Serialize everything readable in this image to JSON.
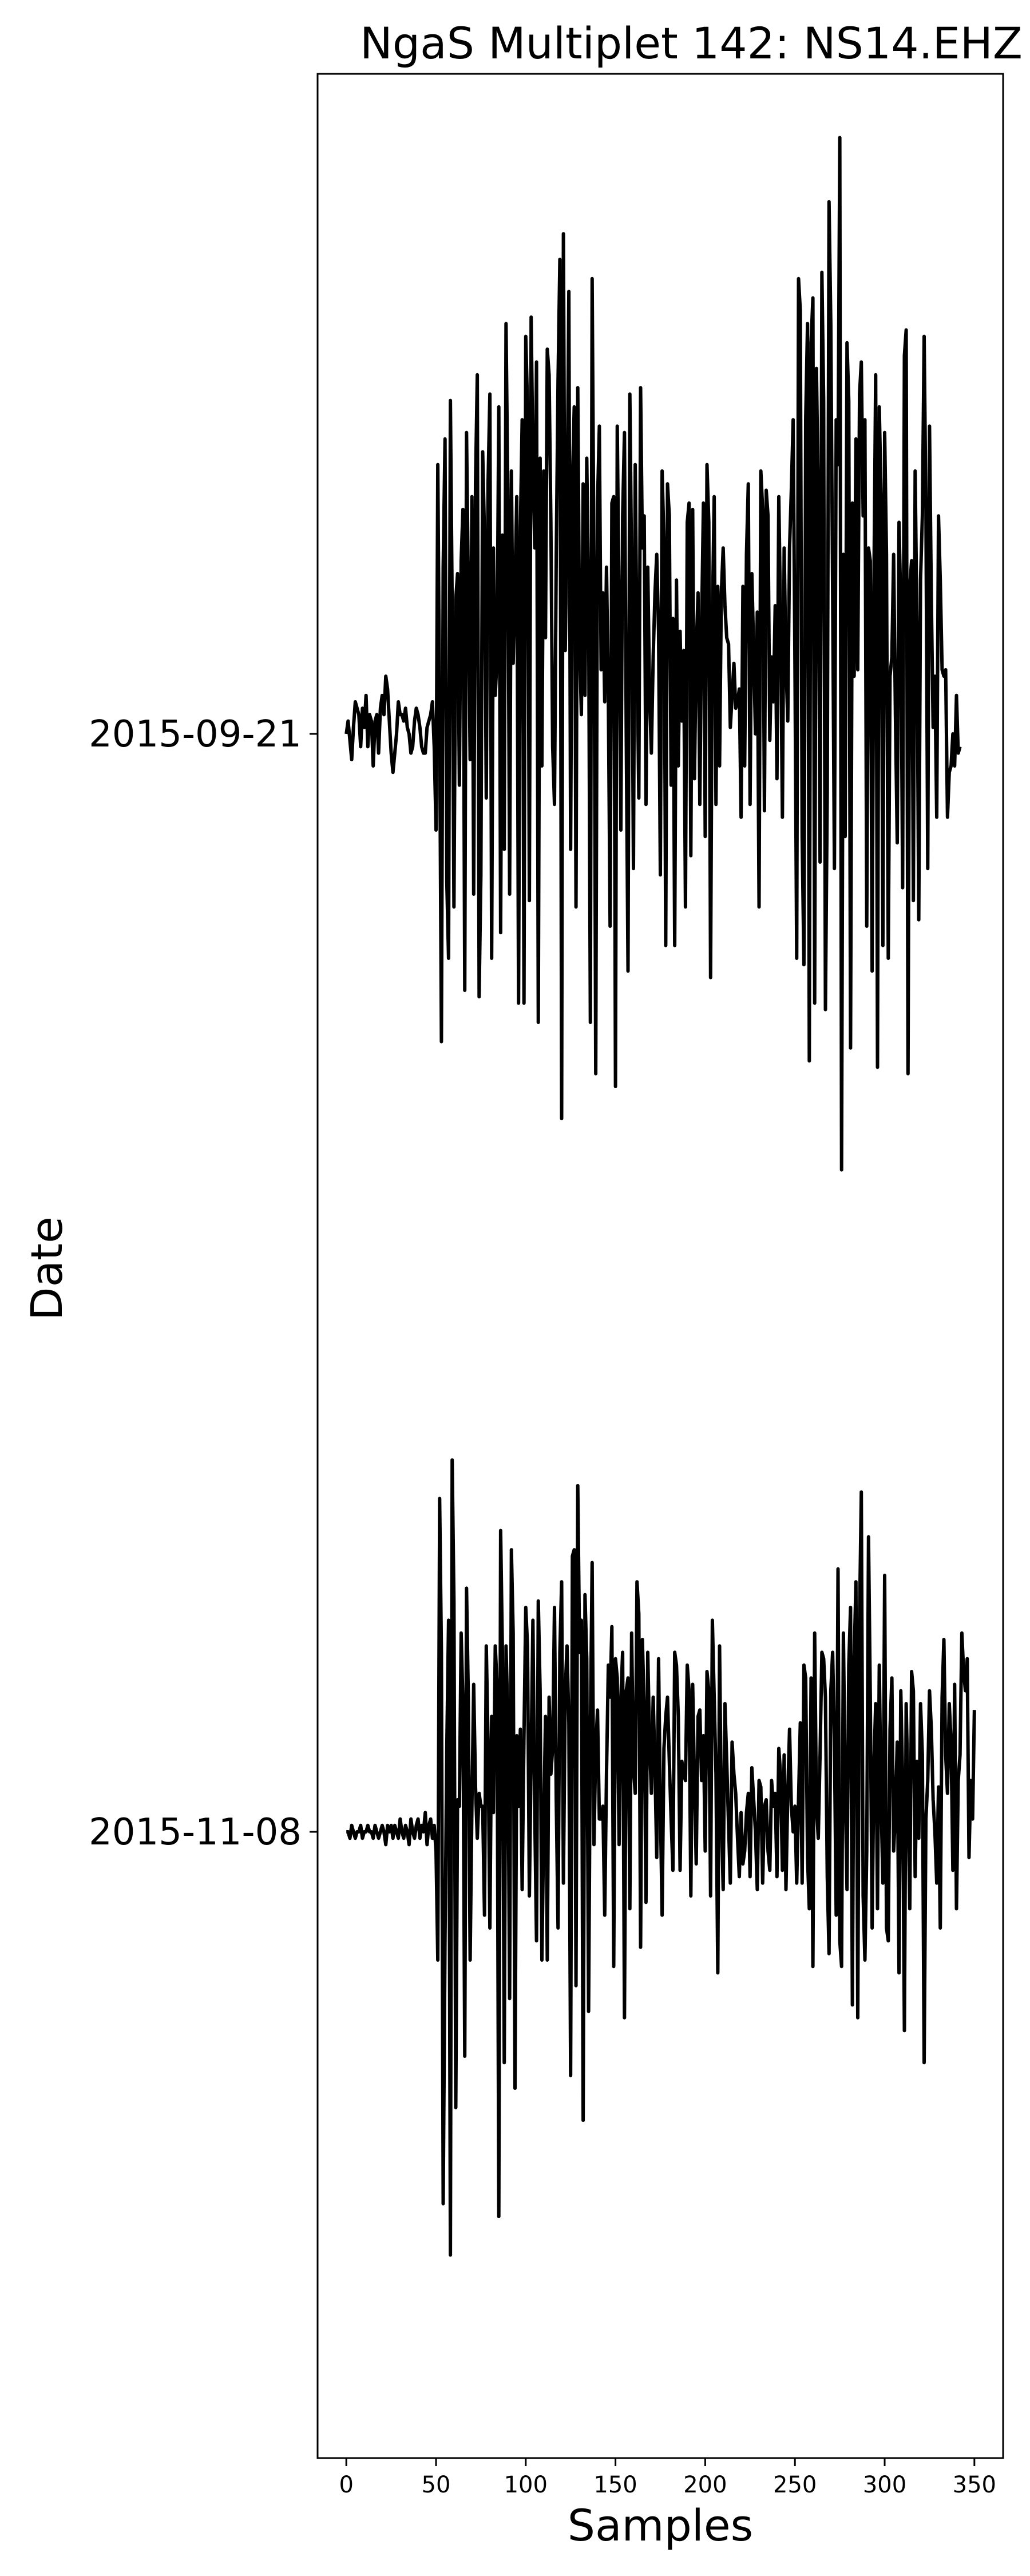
{
  "chart_data": {
    "type": "line",
    "title": "NgaS Multiplet 142: NS14.EHZ",
    "xlabel": "Samples",
    "ylabel": "Date",
    "xlim": [
      -16,
      366
    ],
    "xticks": [
      0,
      50,
      100,
      150,
      200,
      250,
      300,
      350
    ],
    "yticks": [
      "2015-09-21",
      "2015-11-08"
    ],
    "grid": false,
    "legend": "none",
    "line_color": "#000000",
    "note_offsets": "trace values are normalized amplitude relative to each row baseline",
    "series": [
      {
        "date": "2015-09-21",
        "values": [
          0.0,
          0.02,
          -0.01,
          -0.04,
          0.01,
          0.05,
          0.04,
          0.03,
          -0.02,
          0.04,
          0.01,
          0.06,
          -0.02,
          0.03,
          0.02,
          -0.05,
          0.02,
          0.03,
          -0.03,
          0.04,
          0.06,
          0.03,
          0.09,
          0.07,
          0.02,
          -0.03,
          -0.06,
          -0.03,
          0.0,
          0.05,
          0.03,
          0.03,
          0.02,
          0.04,
          0.01,
          0.0,
          -0.03,
          -0.02,
          0.02,
          0.04,
          0.03,
          0.01,
          -0.02,
          -0.03,
          -0.03,
          0.01,
          0.02,
          0.03,
          0.05,
          -0.02,
          -0.15,
          0.42,
          0.02,
          -0.48,
          0.26,
          0.46,
          -0.23,
          -0.35,
          0.52,
          0.2,
          -0.27,
          0.21,
          0.25,
          -0.08,
          0.27,
          0.35,
          -0.4,
          0.47,
          0.23,
          -0.04,
          0.37,
          -0.25,
          0.39,
          0.56,
          -0.41,
          -0.22,
          0.44,
          0.31,
          -0.1,
          0.39,
          0.53,
          -0.35,
          0.29,
          0.06,
          0.12,
          0.51,
          -0.31,
          0.31,
          -0.18,
          0.64,
          0.38,
          -0.25,
          0.41,
          0.11,
          0.23,
          0.37,
          -0.42,
          0.32,
          0.49,
          -0.42,
          0.62,
          0.51,
          -0.26,
          0.65,
          0.43,
          0.29,
          0.58,
          -0.45,
          0.43,
          -0.05,
          0.41,
          0.15,
          0.6,
          0.56,
          0.33,
          -0.02,
          -0.11,
          0.28,
          0.55,
          0.74,
          -0.6,
          0.78,
          0.13,
          0.32,
          0.69,
          -0.18,
          0.39,
          0.51,
          -0.27,
          0.54,
          0.14,
          0.03,
          0.39,
          0.06,
          0.43,
          0.2,
          -0.45,
          0.71,
          0.26,
          -0.53,
          0.36,
          0.48,
          0.1,
          0.22,
          0.05,
          0.26,
          0.06,
          -0.3,
          0.36,
          0.37,
          -0.55,
          0.48,
          0.2,
          -0.15,
          0.34,
          0.47,
          0.0,
          -0.37,
          0.53,
          0.26,
          -0.21,
          0.42,
          0.13,
          -0.1,
          0.54,
          0.29,
          0.34,
          -0.11,
          0.26,
          0.06,
          -0.03,
          0.12,
          0.22,
          0.28,
          0.16,
          -0.22,
          0.41,
          0.3,
          -0.33,
          0.39,
          0.34,
          -0.08,
          0.18,
          -0.33,
          0.24,
          -0.05,
          0.16,
          0.02,
          0.13,
          -0.27,
          0.33,
          0.36,
          -0.19,
          0.35,
          -0.07,
          0.13,
          0.22,
          -0.11,
          0.17,
          0.36,
          -0.16,
          0.42,
          0.33,
          -0.38,
          0.18,
          0.37,
          -0.11,
          0.23,
          -0.05,
          0.22,
          0.29,
          0.2,
          0.15,
          0.14,
          0.01,
          0.06,
          0.11,
          0.04,
          0.05,
          0.07,
          -0.13,
          0.23,
          -0.05,
          0.28,
          0.39,
          -0.11,
          0.25,
          0.13,
          0.0,
          0.19,
          -0.27,
          0.41,
          0.35,
          -0.12,
          0.38,
          0.34,
          -0.01,
          0.12,
          0.05,
          0.2,
          -0.07,
          0.37,
          0.18,
          -0.13,
          0.29,
          0.11,
          0.02,
          0.29,
          0.38,
          0.49,
          0.11,
          -0.35,
          0.71,
          0.66,
          -0.16,
          -0.36,
          0.49,
          0.64,
          -0.51,
          0.61,
          0.68,
          -0.42,
          0.57,
          0.36,
          -0.2,
          0.72,
          0.52,
          -0.43,
          -0.09,
          0.83,
          0.64,
          0.22,
          -0.21,
          0.49,
          0.42,
          0.93,
          -0.68,
          0.28,
          -0.16,
          0.61,
          0.52,
          -0.49,
          0.36,
          0.09,
          0.46,
          0.1,
          0.53,
          0.58,
          0.34,
          0.49,
          -0.3,
          0.29,
          0.27,
          -0.37,
          0.23,
          0.56,
          -0.52,
          0.51,
          0.37,
          -0.33,
          0.47,
          0.28,
          -0.35,
          0.09,
          0.12,
          0.28,
          0.03,
          -0.17,
          0.33,
          0.2,
          -0.24,
          0.59,
          0.63,
          -0.53,
          0.23,
          0.27,
          -0.26,
          0.41,
          0.16,
          -0.29,
          0.24,
          0.34,
          0.62,
          0.35,
          -0.21,
          0.48,
          0.21,
          0.01,
          0.09,
          -0.13,
          0.34,
          0.24,
          0.1,
          0.09,
          0.1,
          -0.13,
          -0.06,
          -0.05,
          0.0,
          -0.05,
          0.06,
          -0.03,
          -0.02
        ]
      },
      {
        "date": "2015-11-08",
        "values": [
          0.0,
          0.0,
          -0.01,
          0.01,
          0.0,
          -0.01,
          0.0,
          0.0,
          0.01,
          -0.01,
          0.0,
          0.0,
          0.01,
          0.0,
          0.0,
          -0.01,
          0.01,
          0.0,
          -0.01,
          0.0,
          0.01,
          0.0,
          -0.02,
          0.01,
          0.0,
          0.01,
          -0.01,
          0.01,
          0.0,
          -0.01,
          0.02,
          0.0,
          -0.01,
          0.01,
          0.0,
          -0.02,
          0.02,
          0.0,
          -0.01,
          0.01,
          0.02,
          -0.01,
          0.01,
          0.0,
          0.03,
          -0.02,
          0.01,
          0.02,
          -0.01,
          0.01,
          -0.03,
          -0.2,
          0.52,
          0.28,
          -0.58,
          -0.17,
          0.13,
          0.33,
          -0.66,
          0.58,
          0.36,
          -0.43,
          0.05,
          0.04,
          0.31,
          0.2,
          -0.35,
          0.38,
          0.21,
          -0.2,
          0.04,
          0.23,
          0.07,
          -0.01,
          0.06,
          0.04,
          0.04,
          -0.13,
          0.29,
          0.14,
          -0.15,
          0.18,
          0.03,
          0.29,
          0.23,
          -0.6,
          0.47,
          0.28,
          -0.36,
          0.29,
          0.18,
          -0.26,
          0.44,
          0.31,
          -0.4,
          0.15,
          0.04,
          0.16,
          -0.09,
          0.15,
          0.35,
          0.29,
          -0.1,
          0.12,
          0.33,
          0.03,
          -0.17,
          0.36,
          0.22,
          -0.2,
          0.01,
          0.18,
          -0.2,
          0.21,
          0.09,
          0.13,
          0.35,
          0.05,
          -0.15,
          0.28,
          0.39,
          -0.08,
          0.22,
          0.29,
          0.17,
          -0.38,
          0.43,
          0.44,
          -0.24,
          0.54,
          0.28,
          0.33,
          -0.45,
          0.37,
          0.27,
          -0.28,
          0.16,
          0.42,
          -0.02,
          0.13,
          0.19,
          0.02,
          0.02,
          0.04,
          -0.13,
          0.09,
          0.26,
          0.21,
          0.32,
          -0.21,
          0.27,
          0.24,
          -0.02,
          0.21,
          0.28,
          -0.29,
          0.22,
          0.24,
          -0.12,
          0.31,
          0.1,
          0.06,
          0.39,
          0.34,
          -0.18,
          0.3,
          0.19,
          -0.11,
          0.28,
          0.14,
          0.06,
          0.21,
          0.1,
          -0.04,
          0.27,
          0.04,
          -0.13,
          0.13,
          0.18,
          0.21,
          0.11,
          0.02,
          -0.06,
          0.28,
          0.26,
          0.18,
          -0.06,
          0.11,
          0.09,
          0.08,
          0.26,
          0.22,
          -0.1,
          0.23,
          0.08,
          -0.05,
          0.18,
          0.19,
          0.08,
          0.15,
          -0.03,
          0.25,
          0.22,
          -0.1,
          0.33,
          0.21,
          0.09,
          -0.22,
          0.29,
          0.03,
          -0.09,
          0.2,
          0.11,
          0.01,
          -0.08,
          0.14,
          0.09,
          0.06,
          -0.01,
          -0.07,
          0.03,
          -0.05,
          -0.03,
          0.03,
          0.06,
          -0.07,
          0.1,
          0.05,
          0.0,
          -0.09,
          0.08,
          0.07,
          -0.08,
          0.04,
          0.05,
          -0.03,
          -0.06,
          0.08,
          0.04,
          0.06,
          -0.07,
          0.13,
          0.09,
          -0.06,
          0.12,
          -0.09,
          0.06,
          0.16,
          0.04,
          0.0,
          0.04,
          -0.08,
          0.05,
          0.17,
          -0.08,
          0.26,
          0.24,
          -0.04,
          -0.12,
          0.24,
          -0.21,
          0.31,
          0.04,
          -0.01,
          0.12,
          0.28,
          0.27,
          0.21,
          -0.07,
          -0.19,
          0.22,
          0.28,
          0.14,
          -0.13,
          0.41,
          -0.17,
          -0.21,
          0.31,
          0.07,
          -0.09,
          0.26,
          0.35,
          -0.27,
          0.27,
          0.39,
          -0.29,
          0.33,
          0.53,
          -0.1,
          -0.2,
          -0.03,
          0.46,
          0.21,
          -0.15,
          0.1,
          0.2,
          -0.12,
          0.26,
          0.05,
          -0.08,
          0.4,
          -0.15,
          -0.17,
          0.16,
          0.24,
          -0.03,
          0.03,
          0.14,
          -0.22,
          0.22,
          0.08,
          -0.31,
          0.2,
          0.06,
          -0.12,
          0.25,
          0.22,
          -0.07,
          0.11,
          -0.01,
          0.2,
          0.12,
          -0.36,
          0.02,
          0.08,
          0.22,
          0.16,
          0.05,
          0.0,
          -0.08,
          0.07,
          -0.15,
          0.21,
          0.3,
          0.12,
          0.06,
          0.2,
          0.14,
          -0.06,
          0.23,
          -0.12,
          0.08,
          0.12,
          0.31,
          0.25,
          0.22,
          0.27,
          -0.04,
          0.08,
          0.02,
          0.19
        ]
      }
    ]
  }
}
